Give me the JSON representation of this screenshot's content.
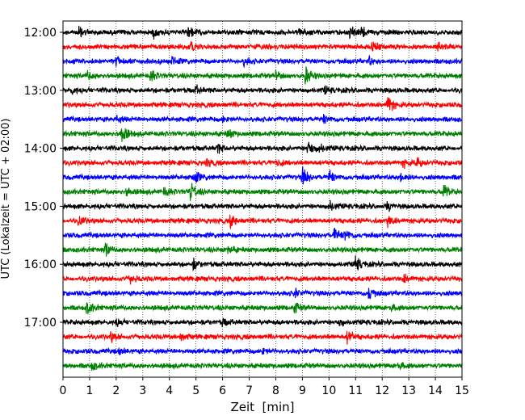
{
  "chart_data": {
    "type": "line",
    "title": "",
    "xlabel": "Zeit  [min]",
    "ylabel": "UTC (Lokalzeit = UTC + 02:00)",
    "xlim": [
      0,
      15
    ],
    "x_ticks": [
      "0",
      "1",
      "2",
      "3",
      "4",
      "5",
      "6",
      "7",
      "8",
      "9",
      "10",
      "11",
      "12",
      "13",
      "14",
      "15"
    ],
    "x_grid": "dotted",
    "y_ticks": [
      "12:00",
      "13:00",
      "14:00",
      "15:00",
      "16:00",
      "17:00"
    ],
    "trace_interval_minutes": 15,
    "first_trace": "12:00",
    "trace_count": 24,
    "trace_colors": [
      "#000000",
      "#ff0000",
      "#0000ff",
      "#008000"
    ],
    "traces": [
      {
        "start": "12:00",
        "color": "#000000",
        "events": [
          [
            0.6,
            1.0
          ],
          [
            3.4,
            0.8
          ],
          [
            4.7,
            1.2
          ],
          [
            8.9,
            0.8
          ],
          [
            10.8,
            1.3
          ],
          [
            11.2,
            1.0
          ]
        ]
      },
      {
        "start": "12:15",
        "color": "#ff0000",
        "events": [
          [
            4.8,
            0.7
          ],
          [
            11.6,
            1.0
          ],
          [
            14.1,
            0.8
          ]
        ]
      },
      {
        "start": "12:30",
        "color": "#0000ff",
        "events": [
          [
            2.0,
            0.7
          ],
          [
            4.1,
            0.7
          ],
          [
            6.8,
            0.7
          ],
          [
            11.5,
            0.7
          ]
        ]
      },
      {
        "start": "12:45",
        "color": "#008000",
        "events": [
          [
            0.9,
            0.9
          ],
          [
            3.3,
            1.0
          ],
          [
            8.0,
            0.8
          ],
          [
            9.1,
            1.9
          ]
        ]
      },
      {
        "start": "13:00",
        "color": "#000000",
        "events": [
          [
            0.3,
            0.7
          ],
          [
            5.0,
            0.7
          ],
          [
            9.8,
            0.6
          ]
        ]
      },
      {
        "start": "13:15",
        "color": "#ff0000",
        "events": [
          [
            12.2,
            1.9
          ]
        ]
      },
      {
        "start": "13:30",
        "color": "#0000ff",
        "events": [
          [
            2.0,
            0.6
          ],
          [
            6.0,
            0.6
          ],
          [
            9.8,
            0.7
          ]
        ]
      },
      {
        "start": "13:45",
        "color": "#008000",
        "events": [
          [
            2.2,
            2.0
          ],
          [
            6.2,
            0.8
          ]
        ]
      },
      {
        "start": "14:00",
        "color": "#000000",
        "events": [
          [
            5.8,
            0.9
          ],
          [
            9.2,
            1.6
          ],
          [
            9.6,
            1.0
          ]
        ]
      },
      {
        "start": "14:15",
        "color": "#ff0000",
        "events": [
          [
            5.4,
            0.7
          ],
          [
            8.0,
            0.7
          ],
          [
            12.8,
            0.7
          ],
          [
            13.3,
            0.8
          ]
        ]
      },
      {
        "start": "14:30",
        "color": "#0000ff",
        "events": [
          [
            4.9,
            1.5
          ],
          [
            9.0,
            1.8
          ],
          [
            10.0,
            1.2
          ],
          [
            12.7,
            0.8
          ]
        ]
      },
      {
        "start": "14:45",
        "color": "#008000",
        "events": [
          [
            2.4,
            0.7
          ],
          [
            3.8,
            0.8
          ],
          [
            4.8,
            1.8
          ],
          [
            14.3,
            1.2
          ]
        ]
      },
      {
        "start": "15:00",
        "color": "#000000",
        "events": [
          [
            10.0,
            1.1
          ],
          [
            12.2,
            0.8
          ]
        ]
      },
      {
        "start": "15:15",
        "color": "#ff0000",
        "events": [
          [
            0.6,
            0.9
          ],
          [
            6.3,
            1.2
          ],
          [
            12.2,
            1.1
          ]
        ]
      },
      {
        "start": "15:30",
        "color": "#0000ff",
        "events": [
          [
            10.2,
            1.4
          ],
          [
            10.6,
            1.0
          ]
        ]
      },
      {
        "start": "15:45",
        "color": "#008000",
        "events": [
          [
            1.6,
            1.4
          ],
          [
            6.2,
            0.8
          ]
        ]
      },
      {
        "start": "16:00",
        "color": "#000000",
        "events": [
          [
            4.9,
            0.9
          ],
          [
            11.0,
            1.3
          ]
        ]
      },
      {
        "start": "16:15",
        "color": "#ff0000",
        "events": [
          [
            2.5,
            0.8
          ],
          [
            12.8,
            0.7
          ]
        ]
      },
      {
        "start": "16:30",
        "color": "#0000ff",
        "events": [
          [
            8.7,
            0.8
          ],
          [
            11.5,
            1.3
          ]
        ]
      },
      {
        "start": "16:45",
        "color": "#008000",
        "events": [
          [
            0.9,
            1.3
          ],
          [
            8.7,
            0.9
          ],
          [
            12.3,
            0.7
          ]
        ]
      },
      {
        "start": "17:00",
        "color": "#000000",
        "events": [
          [
            2.0,
            0.6
          ],
          [
            6.0,
            0.6
          ],
          [
            10.4,
            0.6
          ]
        ]
      },
      {
        "start": "17:15",
        "color": "#ff0000",
        "events": [
          [
            1.8,
            0.8
          ],
          [
            4.4,
            0.7
          ],
          [
            10.7,
            1.5
          ]
        ]
      },
      {
        "start": "17:30",
        "color": "#0000ff",
        "events": [
          [
            2.1,
            0.6
          ],
          [
            7.5,
            0.6
          ]
        ]
      },
      {
        "start": "17:45",
        "color": "#008000",
        "events": [
          [
            1.1,
            0.7
          ],
          [
            12.6,
            0.8
          ]
        ]
      }
    ]
  }
}
